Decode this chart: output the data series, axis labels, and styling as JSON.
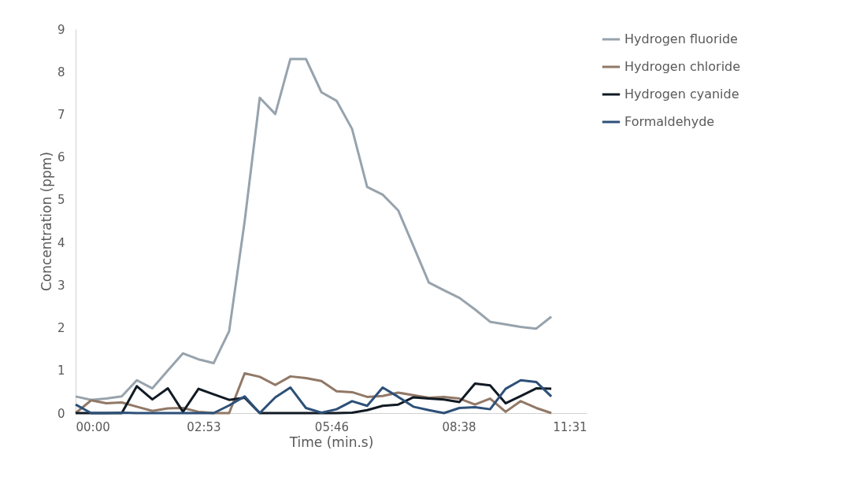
{
  "chart_data": {
    "type": "line",
    "xlabel": "Time (min.s)",
    "ylabel": "Concentration (ppm)",
    "x": [
      0,
      0.35,
      0.69,
      1.04,
      1.38,
      1.73,
      2.08,
      2.42,
      2.77,
      3.11,
      3.46,
      3.81,
      4.15,
      4.5,
      4.84,
      5.19,
      5.54,
      5.88,
      6.23,
      6.57,
      6.92,
      7.27,
      7.61,
      7.96,
      8.3,
      8.65,
      9.0,
      9.34,
      9.69,
      10.03,
      10.38,
      10.72
    ],
    "series": [
      {
        "name": "Hydrogen fluoride",
        "color": "#97a3ad",
        "values": [
          0.39,
          0.31,
          0.34,
          0.39,
          0.77,
          0.58,
          1.0,
          1.4,
          1.26,
          1.17,
          1.92,
          4.5,
          7.39,
          7.01,
          8.3,
          8.3,
          7.52,
          7.32,
          6.66,
          5.3,
          5.12,
          4.75,
          3.92,
          3.06,
          2.88,
          2.7,
          2.43,
          2.14,
          2.08,
          2.02,
          1.98,
          2.26
        ]
      },
      {
        "name": "Hydrogen chloride",
        "color": "#917866",
        "values": [
          0,
          0.3,
          0.23,
          0.25,
          0.15,
          0.05,
          0.11,
          0.12,
          0.03,
          0,
          0,
          0.93,
          0.85,
          0.66,
          0.86,
          0.82,
          0.75,
          0.51,
          0.49,
          0.38,
          0.4,
          0.48,
          0.42,
          0.36,
          0.38,
          0.34,
          0.2,
          0.34,
          0.03,
          0.28,
          0.12,
          0
        ]
      },
      {
        "name": "Hydrogen cyanide",
        "color": "#111a24",
        "values": [
          0,
          0,
          0,
          0,
          0.63,
          0.32,
          0.58,
          0.03,
          0.57,
          0.44,
          0.31,
          0.36,
          0,
          0,
          0,
          0,
          0,
          0,
          0.01,
          0.07,
          0.17,
          0.2,
          0.37,
          0.34,
          0.32,
          0.26,
          0.69,
          0.65,
          0.23,
          0.4,
          0.58,
          0.57
        ]
      },
      {
        "name": "Formaldehyde",
        "color": "#2d5078",
        "values": [
          0.2,
          0,
          0,
          0.01,
          0,
          0,
          0,
          0,
          0,
          0,
          0.18,
          0.39,
          0,
          0.37,
          0.6,
          0.12,
          0.01,
          0.09,
          0.28,
          0.17,
          0.6,
          0.38,
          0.15,
          0.07,
          0,
          0.12,
          0.14,
          0.09,
          0.57,
          0.77,
          0.73,
          0.39
        ]
      }
    ],
    "xlim": [
      0,
      11.5167
    ],
    "xticks": [
      {
        "value": 0,
        "label": "00:00"
      },
      {
        "value": 2.8833,
        "label": "02:53"
      },
      {
        "value": 5.7667,
        "label": "05:46"
      },
      {
        "value": 8.6333,
        "label": "08:38"
      },
      {
        "value": 11.5167,
        "label": "11:31"
      }
    ],
    "ylim": [
      0,
      9
    ],
    "yticks": [
      0,
      1,
      2,
      3,
      4,
      5,
      6,
      7,
      8,
      9
    ],
    "grid": false,
    "legend": "right",
    "marker": "none",
    "line_style": "solid"
  }
}
